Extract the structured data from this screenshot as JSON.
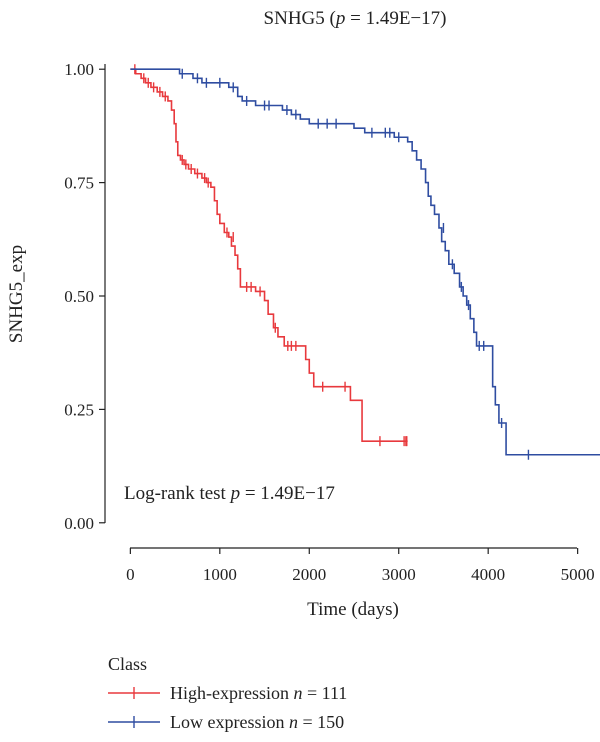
{
  "chart_data": {
    "type": "line",
    "title": "SNHG5",
    "title_stat": {
      "name": "p",
      "value": "1.49E−17"
    },
    "xlabel": "Time (days)",
    "ylabel": "SNHG5_exp",
    "xlim": [
      -250,
      5250
    ],
    "ylim": [
      -0.06,
      1.06
    ],
    "x_ticks": [
      0,
      1000,
      2000,
      3000,
      4000,
      5000
    ],
    "x_tick_labels": [
      "0",
      "1000",
      "2000",
      "3000",
      "4000",
      "5000"
    ],
    "y_ticks": [
      0.0,
      0.25,
      0.5,
      0.75,
      1.0
    ],
    "y_tick_labels": [
      "0.00",
      "0.25",
      "0.50",
      "0.75",
      "1.00"
    ],
    "grid": false,
    "annotation": {
      "prefix": "Log-rank test",
      "stat": "p",
      "value": "1.49E−17"
    },
    "legend": {
      "title": "Class",
      "placement": "bottom-left"
    },
    "series": [
      {
        "name": "High-expression",
        "n_label": "n",
        "n": "111",
        "color": "#e8393d",
        "steps": [
          [
            0,
            1.0
          ],
          [
            60,
            0.99
          ],
          [
            120,
            0.98
          ],
          [
            170,
            0.97
          ],
          [
            230,
            0.96
          ],
          [
            300,
            0.95
          ],
          [
            360,
            0.94
          ],
          [
            420,
            0.93
          ],
          [
            460,
            0.91
          ],
          [
            490,
            0.88
          ],
          [
            510,
            0.84
          ],
          [
            530,
            0.81
          ],
          [
            560,
            0.8
          ],
          [
            600,
            0.79
          ],
          [
            650,
            0.78
          ],
          [
            720,
            0.77
          ],
          [
            800,
            0.76
          ],
          [
            850,
            0.75
          ],
          [
            900,
            0.74
          ],
          [
            940,
            0.71
          ],
          [
            970,
            0.68
          ],
          [
            1000,
            0.66
          ],
          [
            1050,
            0.64
          ],
          [
            1100,
            0.63
          ],
          [
            1130,
            0.61
          ],
          [
            1170,
            0.59
          ],
          [
            1200,
            0.56
          ],
          [
            1230,
            0.52
          ],
          [
            1400,
            0.51
          ],
          [
            1500,
            0.49
          ],
          [
            1540,
            0.46
          ],
          [
            1600,
            0.43
          ],
          [
            1650,
            0.41
          ],
          [
            1720,
            0.39
          ],
          [
            1960,
            0.36
          ],
          [
            2000,
            0.33
          ],
          [
            2050,
            0.3
          ],
          [
            2460,
            0.27
          ],
          [
            2590,
            0.18
          ],
          [
            3100,
            0.18
          ]
        ],
        "censored": [
          [
            50,
            1.0
          ],
          [
            150,
            0.98
          ],
          [
            200,
            0.97
          ],
          [
            260,
            0.96
          ],
          [
            330,
            0.95
          ],
          [
            390,
            0.94
          ],
          [
            580,
            0.8
          ],
          [
            620,
            0.79
          ],
          [
            680,
            0.78
          ],
          [
            750,
            0.77
          ],
          [
            830,
            0.76
          ],
          [
            870,
            0.75
          ],
          [
            1080,
            0.64
          ],
          [
            1150,
            0.63
          ],
          [
            1300,
            0.52
          ],
          [
            1350,
            0.52
          ],
          [
            1450,
            0.51
          ],
          [
            1620,
            0.43
          ],
          [
            1760,
            0.39
          ],
          [
            1800,
            0.39
          ],
          [
            1850,
            0.39
          ],
          [
            2150,
            0.3
          ],
          [
            2400,
            0.3
          ],
          [
            2790,
            0.18
          ],
          [
            3060,
            0.18
          ],
          [
            3080,
            0.18
          ],
          [
            3090,
            0.18
          ]
        ]
      },
      {
        "name": "Low expression",
        "n_label": "n",
        "n": "150",
        "color": "#2f4da1",
        "steps": [
          [
            0,
            1.0
          ],
          [
            550,
            0.99
          ],
          [
            700,
            0.98
          ],
          [
            800,
            0.97
          ],
          [
            1100,
            0.96
          ],
          [
            1200,
            0.94
          ],
          [
            1250,
            0.93
          ],
          [
            1400,
            0.92
          ],
          [
            1700,
            0.91
          ],
          [
            1800,
            0.9
          ],
          [
            1900,
            0.89
          ],
          [
            2000,
            0.88
          ],
          [
            2500,
            0.87
          ],
          [
            2620,
            0.86
          ],
          [
            2950,
            0.85
          ],
          [
            3100,
            0.84
          ],
          [
            3150,
            0.82
          ],
          [
            3200,
            0.8
          ],
          [
            3250,
            0.78
          ],
          [
            3300,
            0.75
          ],
          [
            3330,
            0.72
          ],
          [
            3360,
            0.7
          ],
          [
            3400,
            0.68
          ],
          [
            3450,
            0.65
          ],
          [
            3480,
            0.62
          ],
          [
            3520,
            0.6
          ],
          [
            3560,
            0.57
          ],
          [
            3620,
            0.55
          ],
          [
            3680,
            0.52
          ],
          [
            3720,
            0.5
          ],
          [
            3760,
            0.48
          ],
          [
            3800,
            0.45
          ],
          [
            3840,
            0.42
          ],
          [
            3870,
            0.39
          ],
          [
            4050,
            0.3
          ],
          [
            4080,
            0.26
          ],
          [
            4120,
            0.22
          ],
          [
            4200,
            0.15
          ],
          [
            5300,
            0.15
          ]
        ],
        "censored": [
          [
            580,
            0.99
          ],
          [
            750,
            0.98
          ],
          [
            850,
            0.97
          ],
          [
            1000,
            0.97
          ],
          [
            1150,
            0.96
          ],
          [
            1300,
            0.93
          ],
          [
            1500,
            0.92
          ],
          [
            1550,
            0.92
          ],
          [
            1750,
            0.91
          ],
          [
            1850,
            0.9
          ],
          [
            2100,
            0.88
          ],
          [
            2200,
            0.88
          ],
          [
            2300,
            0.88
          ],
          [
            2700,
            0.86
          ],
          [
            2850,
            0.86
          ],
          [
            2900,
            0.86
          ],
          [
            3000,
            0.85
          ],
          [
            3500,
            0.65
          ],
          [
            3600,
            0.57
          ],
          [
            3700,
            0.52
          ],
          [
            3780,
            0.48
          ],
          [
            3900,
            0.39
          ],
          [
            3950,
            0.39
          ],
          [
            4150,
            0.22
          ],
          [
            4450,
            0.15
          ]
        ]
      }
    ]
  }
}
